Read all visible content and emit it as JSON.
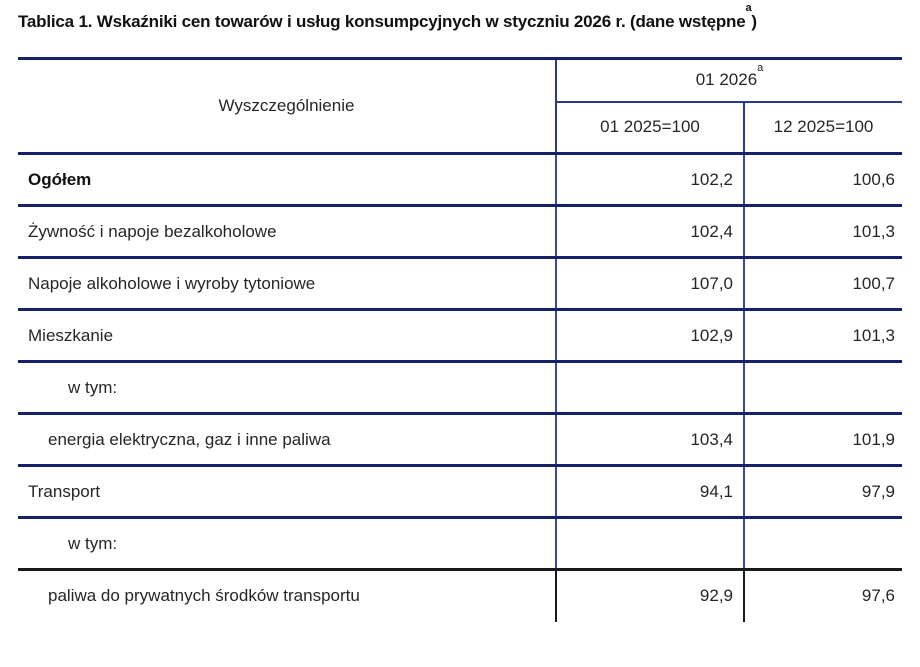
{
  "title": {
    "text": "Tablica 1. Wskaźniki cen towarów i usług konsumpcyjnych w styczniu 2026 r. (dane wstępne",
    "superscript": "a",
    "suffix": ")"
  },
  "table": {
    "col1_header": "Wyszczególnienie",
    "group_header": {
      "text": "01 2026",
      "superscript": "a"
    },
    "col_headers": [
      "01 2025=100",
      "12 2025=100"
    ],
    "rows": [
      {
        "label": "Ogółem",
        "bold": true,
        "indent": 0,
        "v1": "102,2",
        "v2": "100,6"
      },
      {
        "label": "Żywność i napoje bezalkoholowe",
        "bold": false,
        "indent": 0,
        "v1": "102,4",
        "v2": "101,3"
      },
      {
        "label": "Napoje alkoholowe i wyroby tytoniowe",
        "bold": false,
        "indent": 0,
        "v1": "107,0",
        "v2": "100,7"
      },
      {
        "label": "Mieszkanie",
        "bold": false,
        "indent": 0,
        "v1": "102,9",
        "v2": "101,3"
      },
      {
        "label": "w tym:",
        "bold": false,
        "indent": 2,
        "v1": "",
        "v2": ""
      },
      {
        "label": "energia elektryczna, gaz i inne paliwa",
        "bold": false,
        "indent": 1,
        "v1": "103,4",
        "v2": "101,9"
      },
      {
        "label": "Transport",
        "bold": false,
        "indent": 0,
        "v1": "94,1",
        "v2": "97,9"
      },
      {
        "label": "w tym:",
        "bold": false,
        "indent": 2,
        "v1": "",
        "v2": ""
      },
      {
        "label": "paliwa do prywatnych środków transportu",
        "bold": false,
        "indent": 1,
        "v1": "92,9",
        "v2": "97,6",
        "black_border": true
      }
    ]
  },
  "colors": {
    "line_navy": "#15216b",
    "line_vertical": "#3b4a9e",
    "line_black": "#1a1a1a",
    "text": "#262626"
  }
}
